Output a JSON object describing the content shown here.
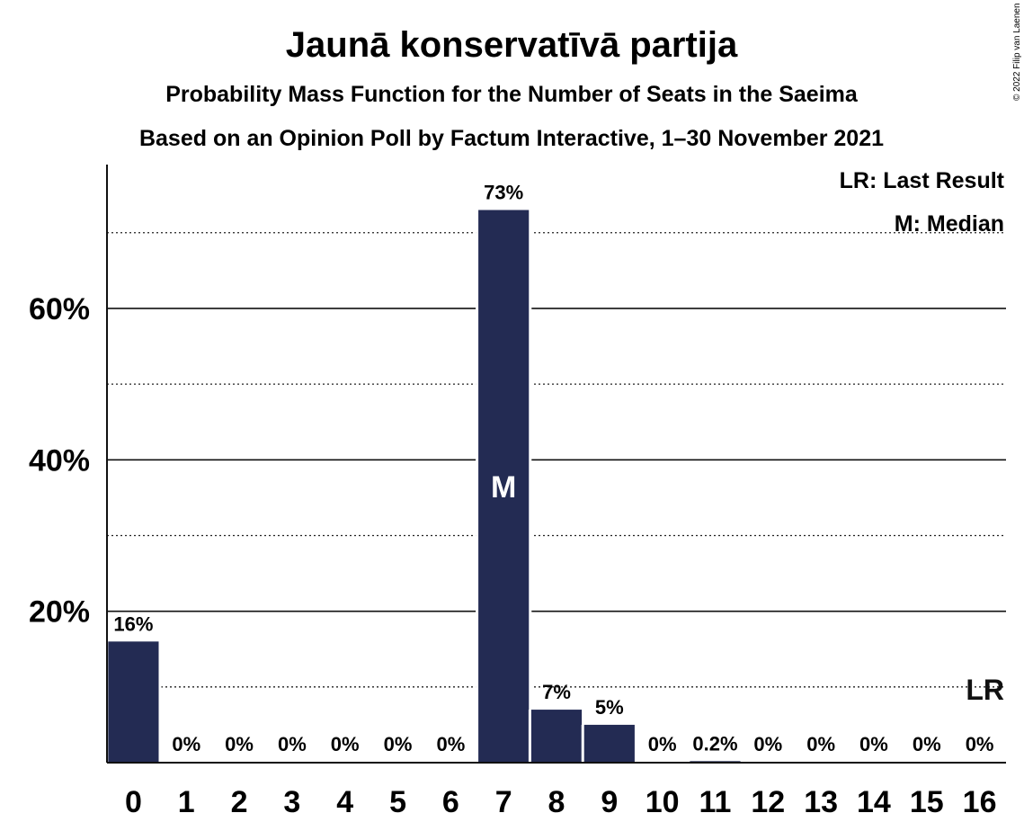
{
  "chart_data": {
    "type": "bar",
    "title": "Jaunā konservatīvā partija",
    "subtitle": "Probability Mass Function for the Number of Seats in the Saeima",
    "subtitle2": "Based on an Opinion Poll by Factum Interactive, 1–30 November 2021",
    "categories": [
      "0",
      "1",
      "2",
      "3",
      "4",
      "5",
      "6",
      "7",
      "8",
      "9",
      "10",
      "11",
      "12",
      "13",
      "14",
      "15",
      "16"
    ],
    "values": [
      16,
      0,
      0,
      0,
      0,
      0,
      0,
      73,
      7,
      5,
      0,
      0.2,
      0,
      0,
      0,
      0,
      0
    ],
    "data_labels": [
      "16%",
      "0%",
      "0%",
      "0%",
      "0%",
      "0%",
      "0%",
      "73%",
      "7%",
      "5%",
      "0%",
      "0.2%",
      "0%",
      "0%",
      "0%",
      "0%",
      "0%"
    ],
    "ylim": [
      0,
      79
    ],
    "yticks": [
      {
        "value": 20,
        "label": "20%"
      },
      {
        "value": 40,
        "label": "40%"
      },
      {
        "value": 60,
        "label": "60%"
      }
    ],
    "minor_gridlines": [
      10,
      30,
      50,
      70
    ],
    "median_index": 7,
    "median_marker": "M",
    "last_result_index": 16,
    "last_result_value": 10,
    "last_result_marker": "LR",
    "legend": [
      "LR: Last Result",
      "M: Median"
    ],
    "legend_position": "top-right",
    "bar_color": "#232b53",
    "copyright": "© 2022 Filip van Laenen"
  }
}
